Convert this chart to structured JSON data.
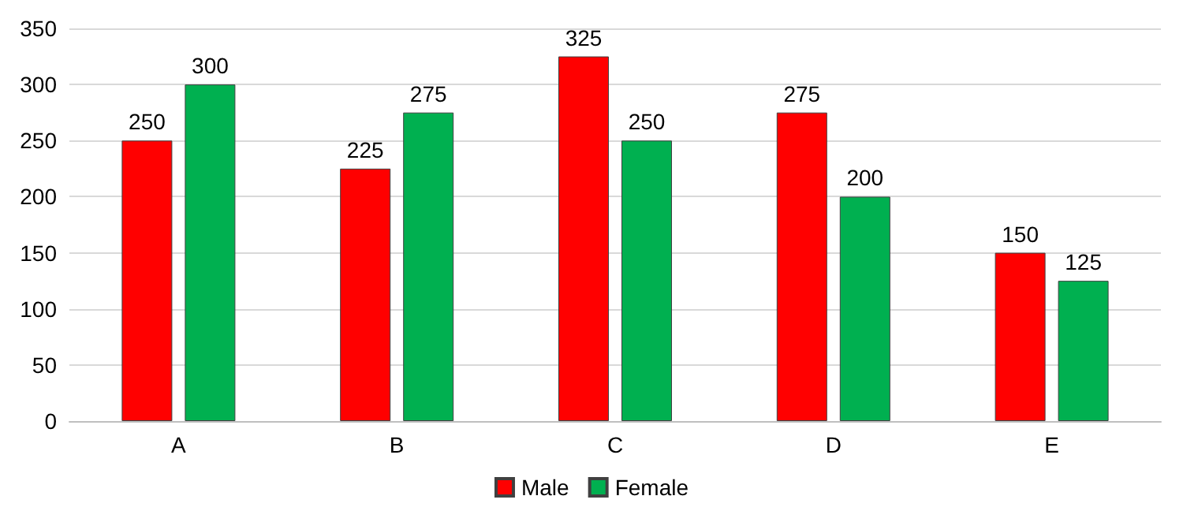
{
  "chart_data": {
    "type": "bar",
    "categories": [
      "A",
      "B",
      "C",
      "D",
      "E"
    ],
    "series": [
      {
        "name": "Male",
        "color": "#ff0000",
        "values": [
          250,
          225,
          325,
          275,
          150
        ]
      },
      {
        "name": "Female",
        "color": "#00b050",
        "values": [
          300,
          275,
          250,
          200,
          125
        ]
      }
    ],
    "ylim": [
      0,
      350
    ],
    "yticks": [
      0,
      50,
      100,
      150,
      200,
      250,
      300,
      350
    ],
    "grid": "y",
    "legend": "bottom",
    "data_labels": true
  }
}
